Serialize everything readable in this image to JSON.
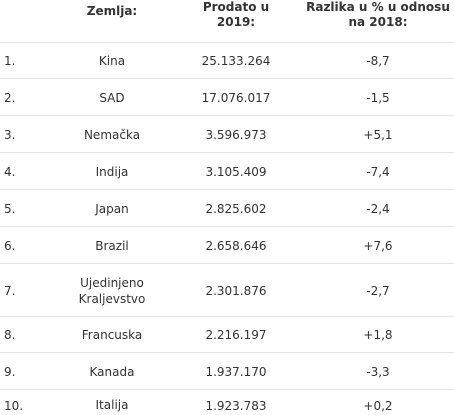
{
  "table": {
    "headers": {
      "country": "Zemlja:",
      "sold": "Prodato u 2019:",
      "diff": "Razlika u % u odnosu na 2018:"
    },
    "rows": [
      {
        "rank": "1.",
        "country": "Kina",
        "sold": "25.133.264",
        "diff": "-8,7"
      },
      {
        "rank": "2.",
        "country": "SAD",
        "sold": "17.076.017",
        "diff": "-1,5"
      },
      {
        "rank": "3.",
        "country": "Nemačka",
        "sold": "3.596.973",
        "diff": "+5,1"
      },
      {
        "rank": "4.",
        "country": "Indija",
        "sold": "3.105.409",
        "diff": "-7,4"
      },
      {
        "rank": "5.",
        "country": "Japan",
        "sold": "2.825.602",
        "diff": "-2,4"
      },
      {
        "rank": "6.",
        "country": "Brazil",
        "sold": "2.658.646",
        "diff": "+7,6"
      },
      {
        "rank": "7.",
        "country": "Ujedinjeno Kraljevstvo",
        "sold": "2.301.876",
        "diff": "-2,7"
      },
      {
        "rank": "8.",
        "country": "Francuska",
        "sold": "2.216.197",
        "diff": "+1,8"
      },
      {
        "rank": "9.",
        "country": "Kanada",
        "sold": "1.937.170",
        "diff": "-3,3"
      },
      {
        "rank": "10.",
        "country": "Italija",
        "sold": "1.923.783",
        "diff": "+0,2"
      }
    ]
  }
}
